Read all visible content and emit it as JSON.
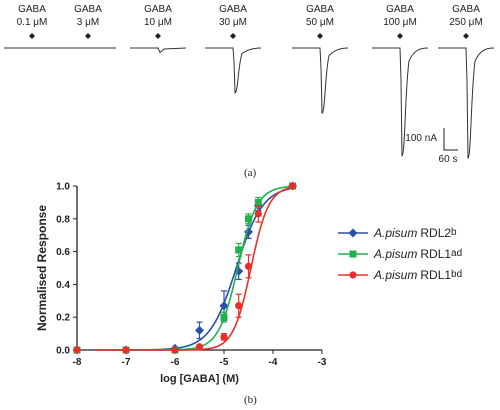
{
  "panel_a": {
    "label": "(a)",
    "traces": [
      {
        "agonist": "GABA",
        "conc": "0.1 μM",
        "peak_nA": 0
      },
      {
        "agonist": "GABA",
        "conc": "3 μM",
        "peak_nA": 0
      },
      {
        "agonist": "GABA",
        "conc": "10 μM",
        "peak_nA": 10
      },
      {
        "agonist": "GABA",
        "conc": "30 μM",
        "peak_nA": 100
      },
      {
        "agonist": "GABA",
        "conc": "50 μM",
        "peak_nA": 145
      },
      {
        "agonist": "GABA",
        "conc": "100 μM",
        "peak_nA": 240
      },
      {
        "agonist": "GABA",
        "conc": "250 μM",
        "peak_nA": 245
      }
    ],
    "scale_bar": {
      "current_label": "100 nA",
      "time_label": "60 s"
    }
  },
  "panel_b": {
    "label": "(b)"
  },
  "chart_data": {
    "type": "line",
    "title": "",
    "xlabel": "log [GABA] (M)",
    "ylabel": "Normalised Response",
    "xlim": [
      -8,
      -3
    ],
    "ylim": [
      0,
      1.0
    ],
    "xticks": [
      "-8",
      "-7",
      "-6",
      "-5",
      "-4",
      "-3"
    ],
    "yticks": [
      "0.0",
      "0.2",
      "0.4",
      "0.6",
      "0.8",
      "1.0"
    ],
    "grid": false,
    "legend_position": "right",
    "series": [
      {
        "name": "A.pisum",
        "suffix": "RDL2",
        "subscript": "b",
        "color": "#2a4fa8",
        "marker": "diamond",
        "ec50_log": -4.75,
        "hill": 1.6,
        "x": [
          -8,
          -7,
          -6,
          -5.5,
          -5,
          -4.7,
          -4.5,
          -4.3,
          -3.6
        ],
        "y": [
          0.0,
          0.0,
          0.01,
          0.12,
          0.27,
          0.48,
          0.72,
          0.88,
          1.0
        ],
        "err": [
          0,
          0,
          0,
          0.05,
          0.09,
          0.05,
          0.04,
          0.03,
          0
        ]
      },
      {
        "name": "A.pisum",
        "suffix": "RDL1",
        "subscript": "ad",
        "color": "#22b04b",
        "marker": "square",
        "ec50_log": -4.72,
        "hill": 2.2,
        "x": [
          -8,
          -7,
          -6,
          -5,
          -4.7,
          -4.5,
          -4.3,
          -3.6
        ],
        "y": [
          0.0,
          0.0,
          0.0,
          0.2,
          0.61,
          0.8,
          0.9,
          1.0
        ],
        "err": [
          0,
          0,
          0,
          0.03,
          0.04,
          0.03,
          0.03,
          0
        ]
      },
      {
        "name": "A.pisum",
        "suffix": "RDL1",
        "subscript": "bd",
        "color": "#e8302a",
        "marker": "circle",
        "ec50_log": -4.45,
        "hill": 2.4,
        "x": [
          -8,
          -7,
          -6,
          -5.5,
          -5,
          -4.7,
          -4.5,
          -4.3,
          -3.6
        ],
        "y": [
          0.0,
          0.0,
          0.0,
          0.02,
          0.08,
          0.27,
          0.51,
          0.83,
          1.0
        ],
        "err": [
          0,
          0,
          0,
          0,
          0.02,
          0.07,
          0.07,
          0.05,
          0
        ]
      }
    ]
  }
}
